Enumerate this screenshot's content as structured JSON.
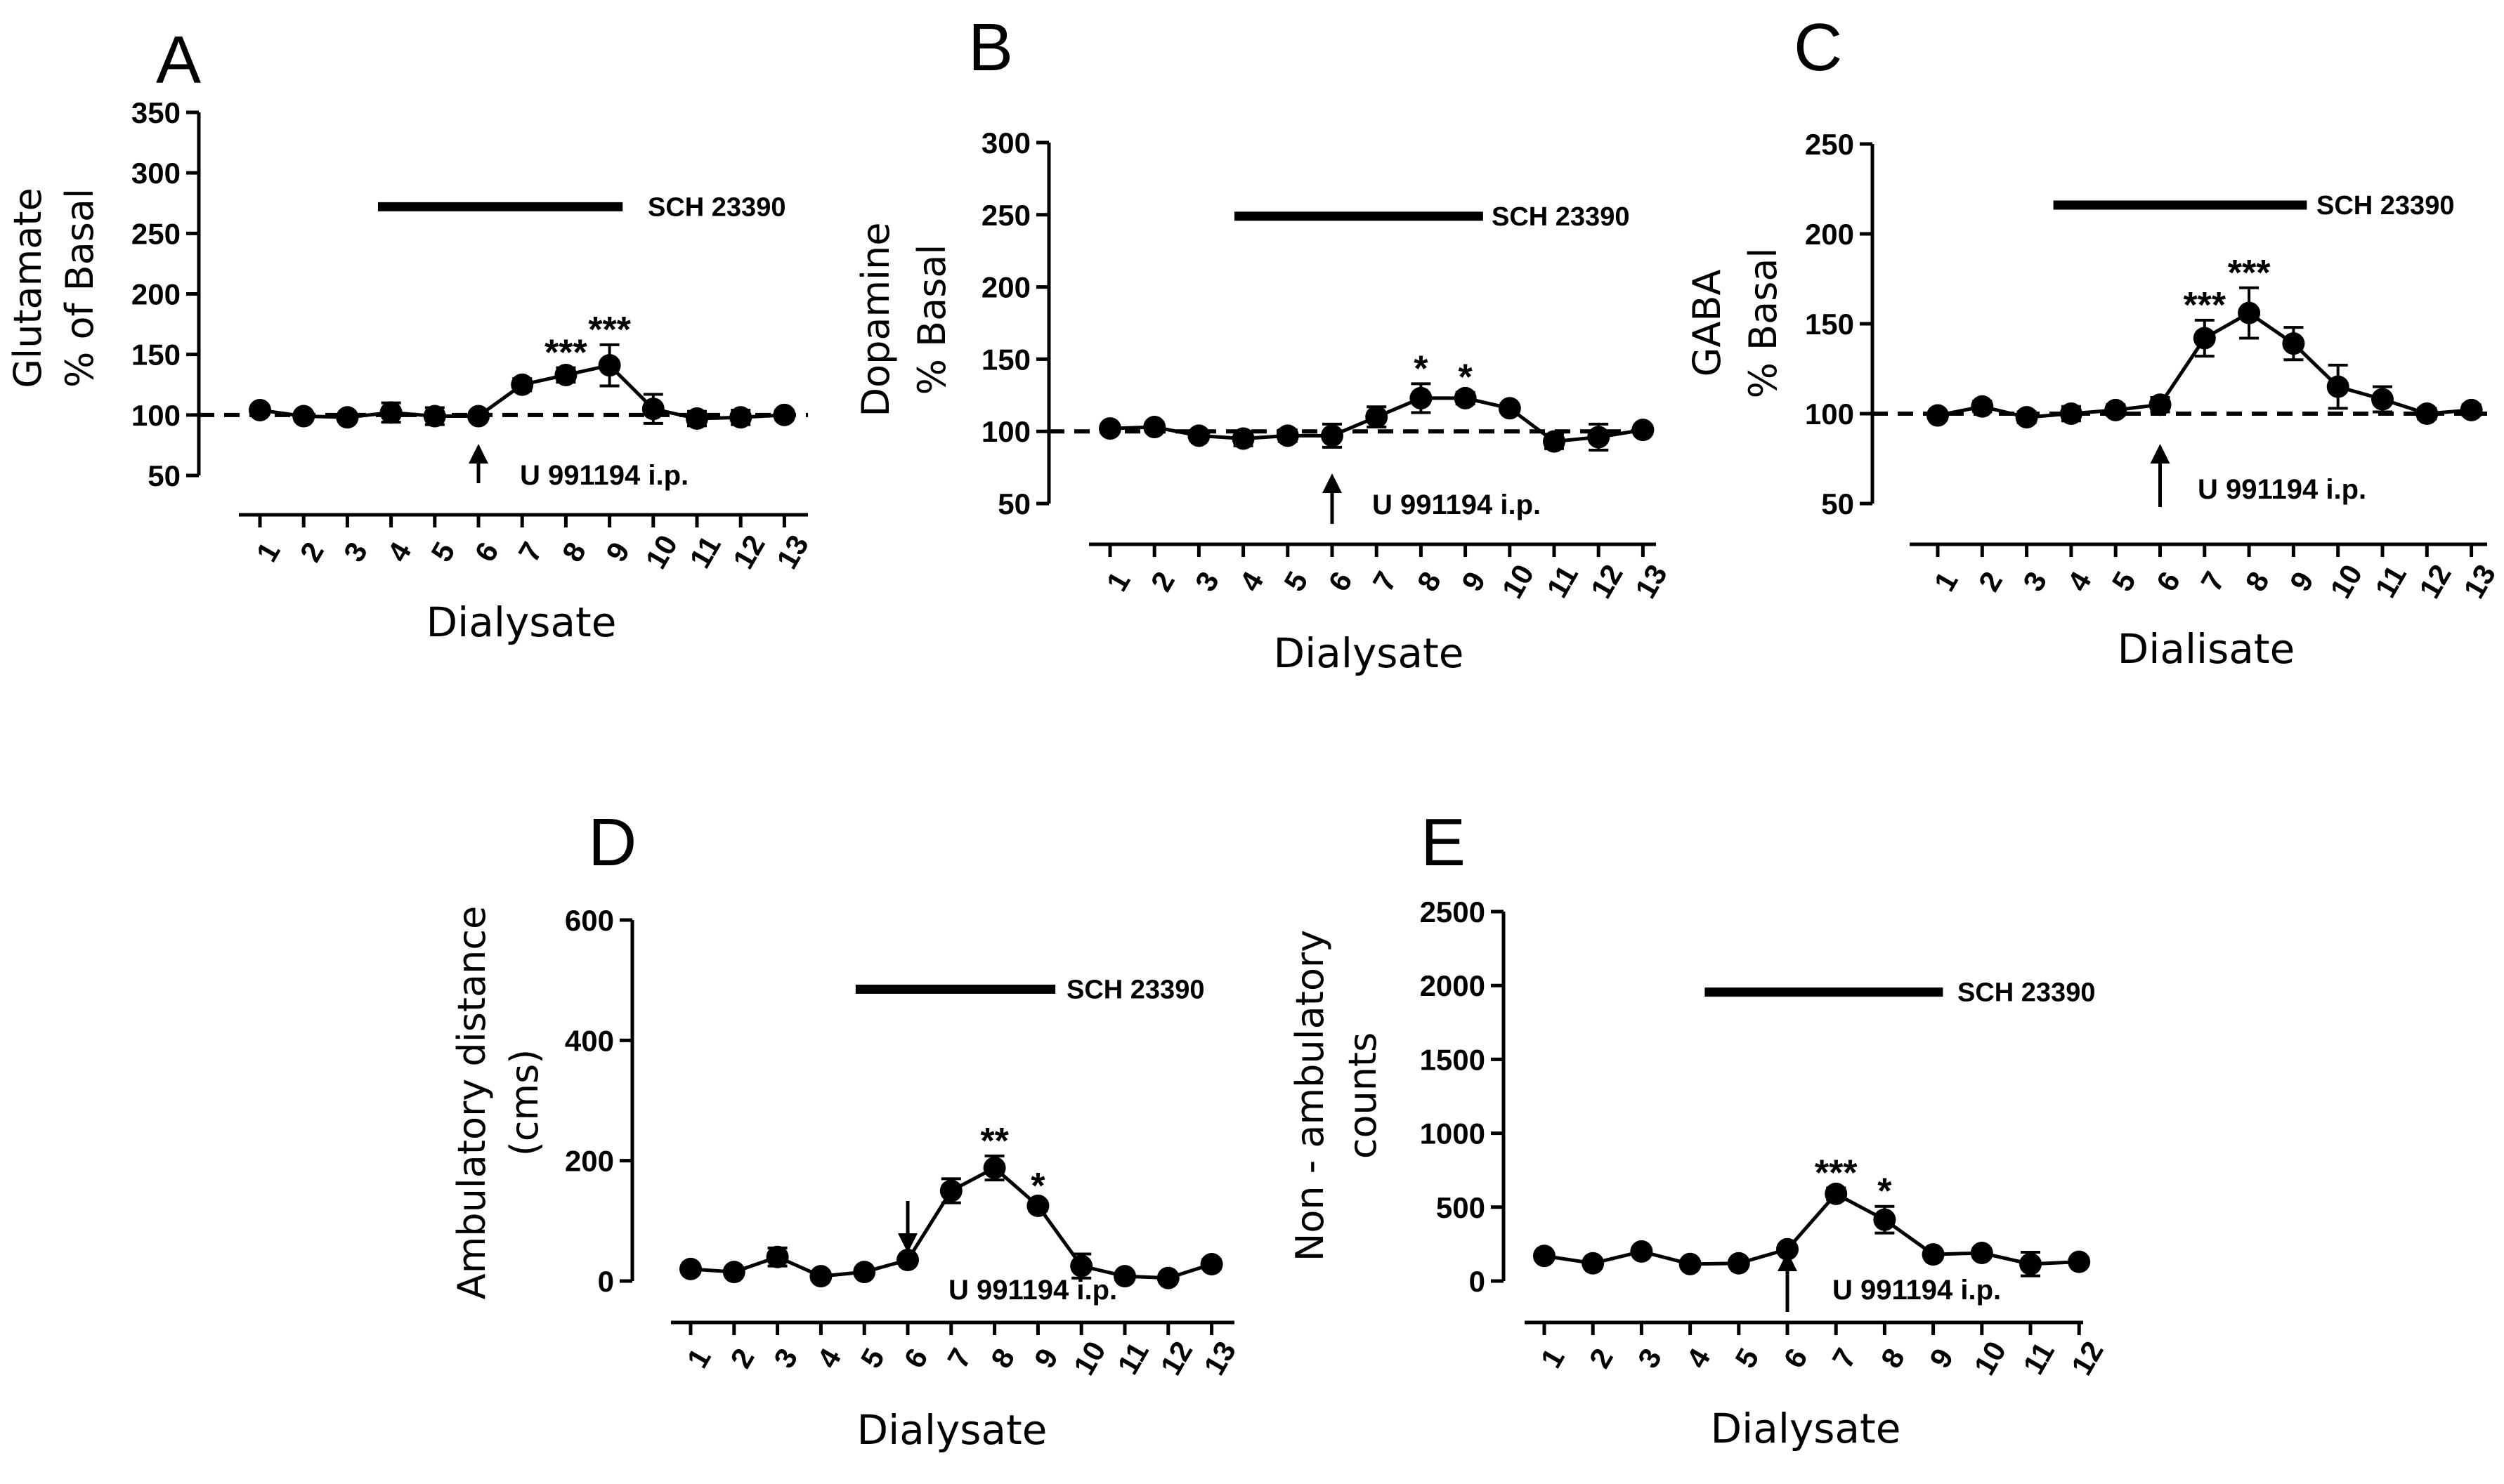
{
  "figure": {
    "panels": [
      "A",
      "B",
      "C",
      "D",
      "E"
    ]
  },
  "chart_data": [
    {
      "type": "line",
      "panel": "A",
      "ylabel_lines": [
        "Glutamate",
        "% of  Basal"
      ],
      "xlabel": "Dialysate",
      "ylim": [
        50,
        350
      ],
      "yticks": [
        50,
        100,
        150,
        200,
        250,
        300,
        350
      ],
      "baseline": 100,
      "categories": [
        "1",
        "2",
        "3",
        "4",
        "5",
        "6",
        "7",
        "8",
        "9",
        "10",
        "11",
        "12",
        "13"
      ],
      "values": [
        104,
        99,
        98,
        102,
        99,
        99,
        125,
        133,
        141,
        105,
        97,
        98,
        100
      ],
      "errors": [
        3,
        3,
        3,
        8,
        7,
        3,
        5,
        6,
        17,
        12,
        6,
        6,
        4
      ],
      "bar_label": "SCH 23390",
      "bar_range": [
        3.7,
        9.3
      ],
      "bar_level": 272,
      "injection_label": "U 991194 i.p.",
      "injection_at": 6,
      "annotations": [
        {
          "x": 8,
          "text": "***"
        },
        {
          "x": 9,
          "text": "***"
        }
      ]
    },
    {
      "type": "line",
      "panel": "B",
      "ylabel_lines": [
        "Dopamine",
        "% Basal"
      ],
      "xlabel": "Dialysate",
      "ylim": [
        50,
        300
      ],
      "yticks": [
        50,
        100,
        150,
        200,
        250,
        300
      ],
      "baseline": 100,
      "categories": [
        "1",
        "2",
        "3",
        "4",
        "5",
        "6",
        "7",
        "8",
        "9",
        "10",
        "11",
        "12",
        "13"
      ],
      "values": [
        102,
        103,
        97,
        95,
        97,
        97,
        110,
        123,
        123,
        116,
        93,
        96,
        101
      ],
      "errors": [
        3,
        3,
        3,
        5,
        4,
        8,
        7,
        10,
        4,
        3,
        5,
        9,
        3
      ],
      "bar_label": "SCH 23390",
      "bar_range": [
        3.8,
        9.4
      ],
      "bar_level": 249,
      "injection_label": "U 991194 i.p.",
      "injection_at": 6,
      "annotations": [
        {
          "x": 8,
          "text": "*"
        },
        {
          "x": 9,
          "text": "*"
        }
      ]
    },
    {
      "type": "line",
      "panel": "C",
      "ylabel_lines": [
        "GABA",
        "% Basal"
      ],
      "xlabel": "Dialisate",
      "ylim": [
        50,
        250
      ],
      "yticks": [
        50,
        100,
        150,
        200,
        250
      ],
      "baseline": 100,
      "categories": [
        "1",
        "2",
        "3",
        "4",
        "5",
        "6",
        "7",
        "8",
        "9",
        "10",
        "11",
        "12",
        "13"
      ],
      "values": [
        99,
        104,
        98,
        100,
        102,
        105,
        142,
        156,
        139,
        115,
        108,
        100,
        102
      ],
      "errors": [
        2,
        3,
        3,
        4,
        3,
        4,
        10,
        14,
        9,
        12,
        7,
        3,
        3
      ],
      "bar_label": "SCH 23390",
      "bar_range": [
        3.6,
        9.3
      ],
      "bar_level": 216,
      "injection_label": "U 991194 i.p.",
      "injection_at": 6,
      "annotations": [
        {
          "x": 7,
          "text": "***"
        },
        {
          "x": 8,
          "text": "***"
        }
      ]
    },
    {
      "type": "line",
      "panel": "D",
      "ylabel_lines": [
        "Ambulatory distance",
        "(cms)"
      ],
      "xlabel": "Dialysate",
      "ylim": [
        0,
        600
      ],
      "yticks": [
        0,
        200,
        400,
        600
      ],
      "categories": [
        "1",
        "2",
        "3",
        "4",
        "5",
        "6",
        "7",
        "8",
        "9",
        "10",
        "11",
        "12",
        "13"
      ],
      "values": [
        20,
        15,
        40,
        8,
        15,
        35,
        150,
        188,
        125,
        25,
        8,
        5,
        28
      ],
      "errors": [
        5,
        5,
        15,
        4,
        5,
        5,
        20,
        20,
        8,
        20,
        5,
        5,
        8
      ],
      "bar_label": "SCH 23390",
      "bar_range": [
        4.8,
        9.4
      ],
      "bar_level": 485,
      "injection_label": "U 991194 i.p.",
      "injection_at": 6,
      "annotations": [
        {
          "x": 8,
          "text": "**"
        },
        {
          "x": 9,
          "text": "*"
        }
      ]
    },
    {
      "type": "line",
      "panel": "E",
      "ylabel_lines": [
        "Non - ambulatory",
        "counts"
      ],
      "xlabel": "Dialysate",
      "ylim": [
        0,
        2500
      ],
      "yticks": [
        0,
        500,
        1000,
        1500,
        2000,
        2500
      ],
      "categories": [
        "1",
        "2",
        "3",
        "4",
        "5",
        "6",
        "7",
        "8",
        "9",
        "10",
        "11",
        "12"
      ],
      "values": [
        170,
        120,
        200,
        115,
        120,
        215,
        590,
        415,
        180,
        190,
        115,
        130
      ],
      "errors": [
        20,
        15,
        20,
        15,
        15,
        20,
        40,
        90,
        20,
        30,
        80,
        20
      ],
      "bar_label": "SCH 23390",
      "bar_range": [
        4.3,
        9.2
      ],
      "bar_level": 1955,
      "injection_label": "U 991194 i.p.",
      "injection_at": 6,
      "annotations": [
        {
          "x": 7,
          "text": "***"
        },
        {
          "x": 8,
          "text": "*"
        }
      ]
    }
  ]
}
